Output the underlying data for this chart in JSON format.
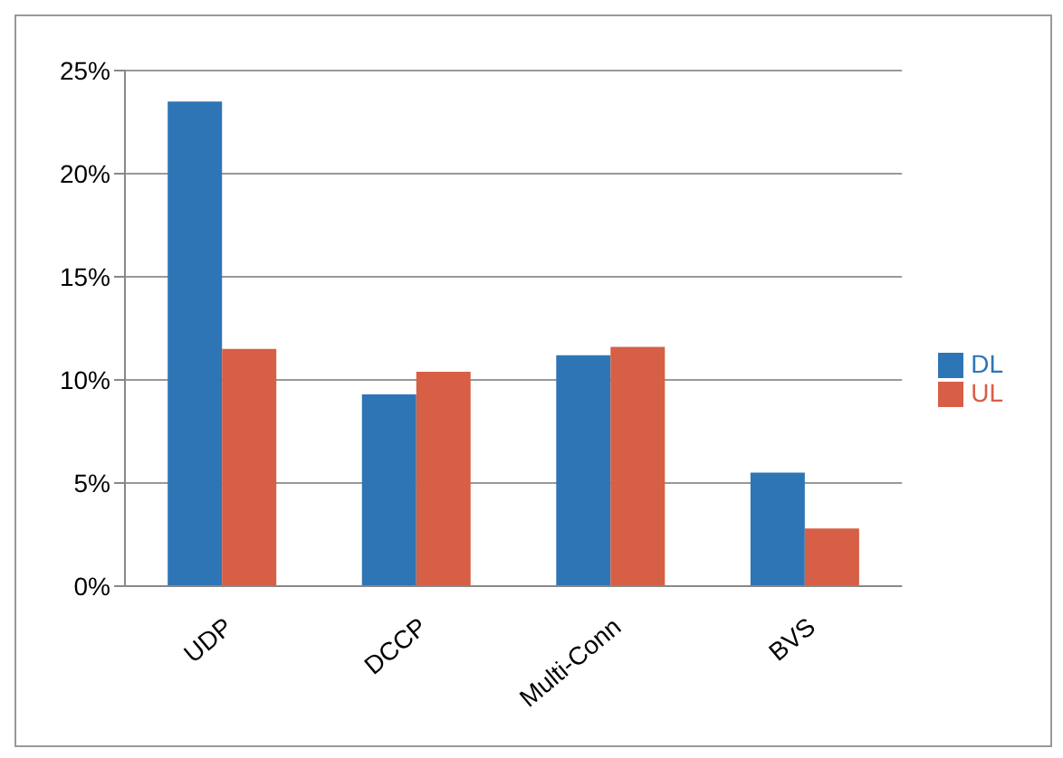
{
  "chart_data": {
    "type": "bar",
    "categories": [
      "UDP",
      "DCCP",
      "Multi-Conn",
      "BVS"
    ],
    "series": [
      {
        "name": "DL",
        "color": "#2e75b6",
        "values": [
          23.5,
          9.3,
          11.2,
          5.5
        ]
      },
      {
        "name": "UL",
        "color": "#d65f46",
        "values": [
          11.5,
          10.4,
          11.6,
          2.8
        ]
      }
    ],
    "ylim": [
      0,
      25
    ],
    "yticks": [
      {
        "value": 0,
        "label": "0%"
      },
      {
        "value": 5,
        "label": "5%"
      },
      {
        "value": 10,
        "label": "10%"
      },
      {
        "value": 15,
        "label": "15%"
      },
      {
        "value": 20,
        "label": "20%"
      },
      {
        "value": 25,
        "label": "25%"
      }
    ],
    "grid": "y",
    "legend": "right"
  }
}
